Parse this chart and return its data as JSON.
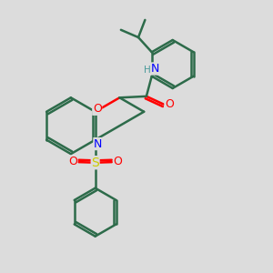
{
  "bg_color": "#dcdcdc",
  "bond_color": "#2d6b4a",
  "N_color": "#0000ff",
  "O_color": "#ff0000",
  "S_color": "#cccc00",
  "H_color": "#4a9a9a",
  "line_width": 1.8,
  "fig_size": [
    3.0,
    3.0
  ],
  "dpi": 100,
  "xlim": [
    0,
    10
  ],
  "ylim": [
    0,
    10
  ]
}
